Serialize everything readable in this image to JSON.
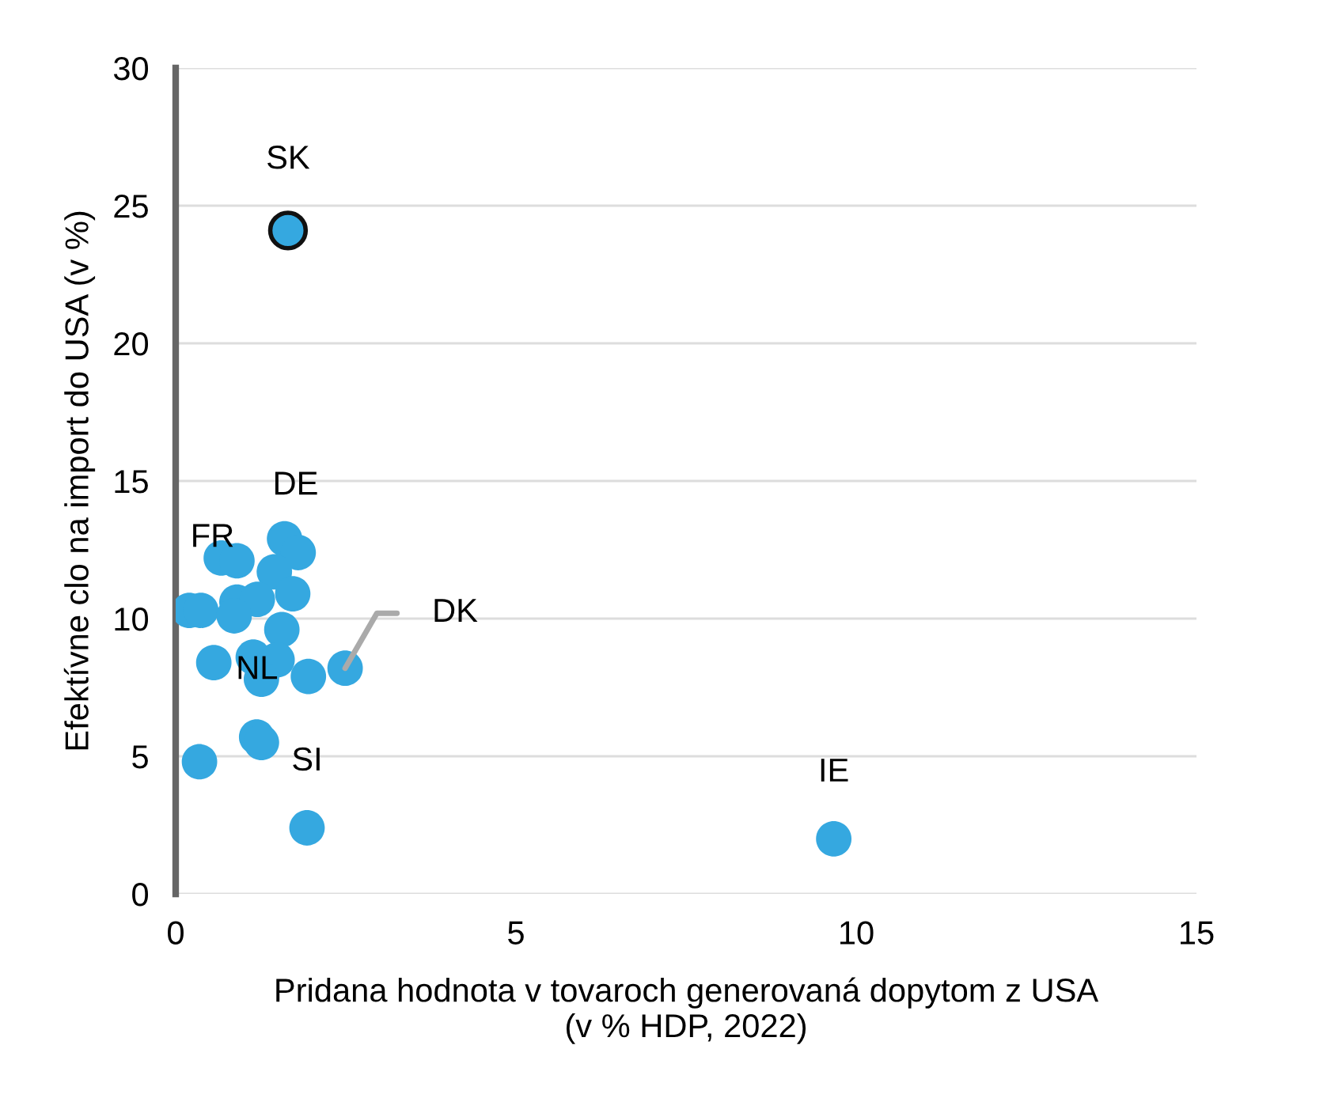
{
  "chart_data": {
    "type": "scatter",
    "xlabel": "Pridana hodnota v tovaroch generovaná dopytom z USA\n(v % HDP, 2022)",
    "ylabel": "Efektívne clo na import do USA (v %)",
    "xlim": [
      0,
      15
    ],
    "ylim": [
      0,
      30
    ],
    "xticks": [
      0,
      5,
      10,
      15
    ],
    "yticks": [
      0,
      5,
      10,
      15,
      20,
      25,
      30
    ],
    "grid": "y",
    "marker": "circle",
    "series": [
      {
        "color": "#35a8e0",
        "x": [
          1.6,
          1.8,
          0.67,
          0.9,
          1.45,
          1.72,
          0.9,
          1.2,
          0.2,
          0.37,
          0.86,
          1.56,
          0.56,
          1.14,
          1.49,
          1.26,
          1.95,
          2.49,
          1.19,
          1.26,
          0.35,
          1.93,
          9.67
        ],
        "values": [
          12.9,
          12.4,
          12.2,
          12.1,
          11.7,
          10.9,
          10.6,
          10.7,
          10.3,
          10.3,
          10.1,
          9.6,
          8.4,
          8.6,
          8.5,
          7.8,
          7.9,
          8.2,
          5.7,
          5.5,
          4.8,
          2.4,
          2.0
        ]
      },
      {
        "color": "#35a8e0",
        "x": [
          1.65
        ],
        "values": [
          24.1
        ]
      }
    ],
    "annotations": [
      {
        "text": "SK",
        "x": 1.65,
        "y": 24.1
      },
      {
        "text": "DE",
        "x": 1.6,
        "y": 12.9
      },
      {
        "text": "FR",
        "x": 0.67,
        "y": 12.2
      },
      {
        "text": "NL",
        "x": 1.26,
        "y": 7.8
      },
      {
        "text": "SI",
        "x": 1.93,
        "y": 2.4
      },
      {
        "text": "DK",
        "x": 2.49,
        "y": 8.2
      },
      {
        "text": "IE",
        "x": 9.67,
        "y": 2.0
      }
    ]
  }
}
